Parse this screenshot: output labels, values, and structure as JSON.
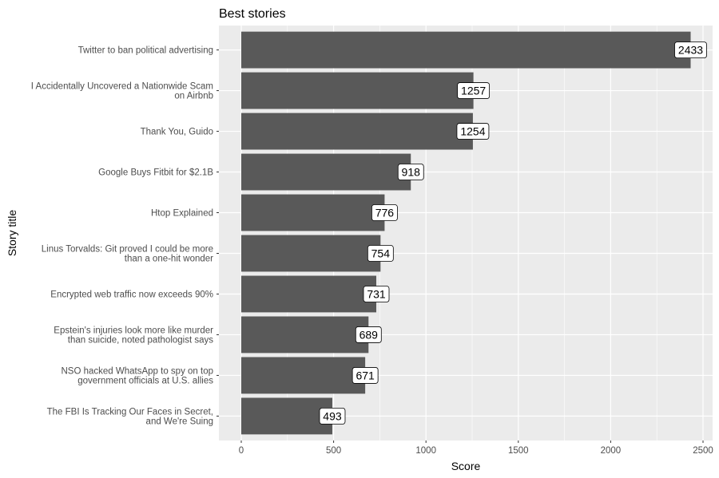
{
  "chart_data": {
    "type": "bar",
    "orientation": "horizontal",
    "title": "Best stories",
    "xlabel": "Score",
    "ylabel": "Story title",
    "xlim": [
      0,
      2500
    ],
    "xticks": [
      0,
      500,
      1000,
      1500,
      2000,
      2500
    ],
    "grid": true,
    "bar_color": "#595959",
    "panel_color": "#EBEBEB",
    "categories": [
      "Twitter to ban political advertising",
      "I Accidentally Uncovered a Nationwide Scam\non Airbnb",
      "Thank You, Guido",
      "Google Buys Fitbit for $2.1B",
      "Htop Explained",
      "Linus Torvalds: Git proved I could be more\nthan a one-hit wonder",
      "Encrypted web traffic now exceeds 90%",
      "Epstein's injuries look more like murder\nthan suicide, noted pathologist says",
      "NSO hacked WhatsApp to spy on top\ngovernment officials at U.S. allies",
      "The FBI Is Tracking Our Faces in Secret,\nand We're Suing"
    ],
    "values": [
      2433,
      1257,
      1254,
      918,
      776,
      754,
      731,
      689,
      671,
      493
    ],
    "data_labels": [
      "2433",
      "1257",
      "1254",
      "918",
      "776",
      "754",
      "731",
      "689",
      "671",
      "493"
    ]
  }
}
